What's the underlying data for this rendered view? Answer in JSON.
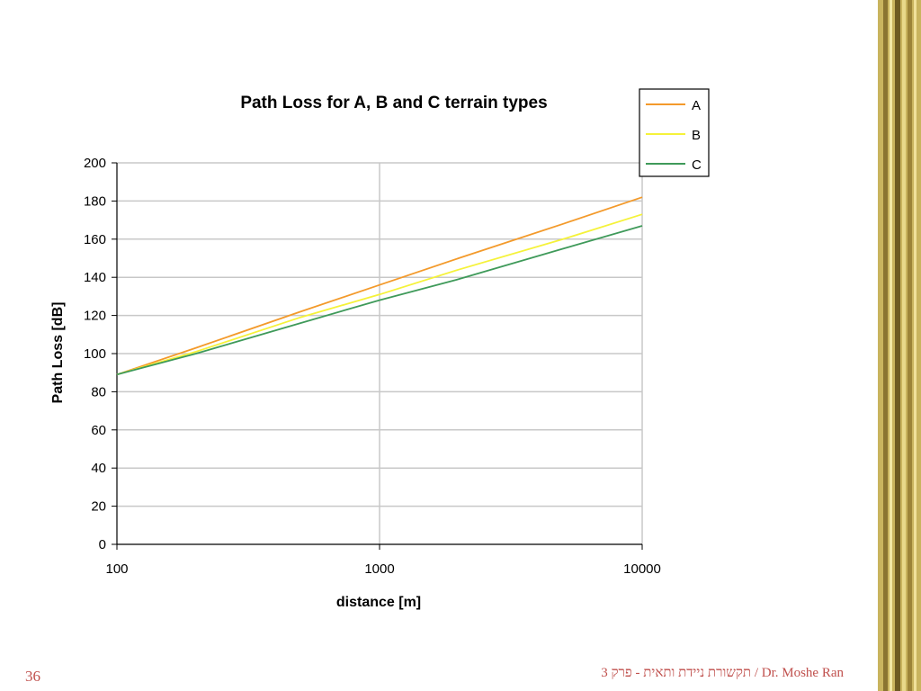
{
  "slide": {
    "number": "36",
    "footer_author": "Dr. Moshe Ran",
    "footer_course": "תקשורת ניידת ותאית  - פרק 3",
    "footer_separator": "/",
    "border_color": "#bfa64e"
  },
  "chart_data": {
    "type": "line",
    "title": "Path Loss for A, B and C terrain types",
    "xlabel": "distance [m]",
    "ylabel": "Path Loss [dB]",
    "xscale": "log",
    "xlim": [
      100,
      10000
    ],
    "ylim": [
      0,
      200
    ],
    "xticks": [
      "100",
      "1000",
      "10000"
    ],
    "yticks": [
      "0",
      "20",
      "40",
      "60",
      "80",
      "100",
      "120",
      "140",
      "160",
      "180",
      "200"
    ],
    "grid": "horizontal major lines and vertical line at 1000",
    "legend_position": "top-right",
    "series": [
      {
        "name": "A",
        "color": "#f39a2b",
        "x": [
          100,
          200,
          500,
          1000,
          2000,
          5000,
          10000
        ],
        "y": [
          89,
          103,
          122,
          136,
          150,
          168,
          182
        ]
      },
      {
        "name": "B",
        "color": "#f5f23a",
        "x": [
          100,
          200,
          500,
          1000,
          2000,
          5000,
          10000
        ],
        "y": [
          89,
          101,
          119,
          131,
          144,
          160,
          173
        ]
      },
      {
        "name": "C",
        "color": "#3f9a5a",
        "x": [
          100,
          200,
          500,
          1000,
          2000,
          5000,
          10000
        ],
        "y": [
          89,
          100,
          116,
          128,
          139,
          155,
          167
        ]
      }
    ]
  }
}
